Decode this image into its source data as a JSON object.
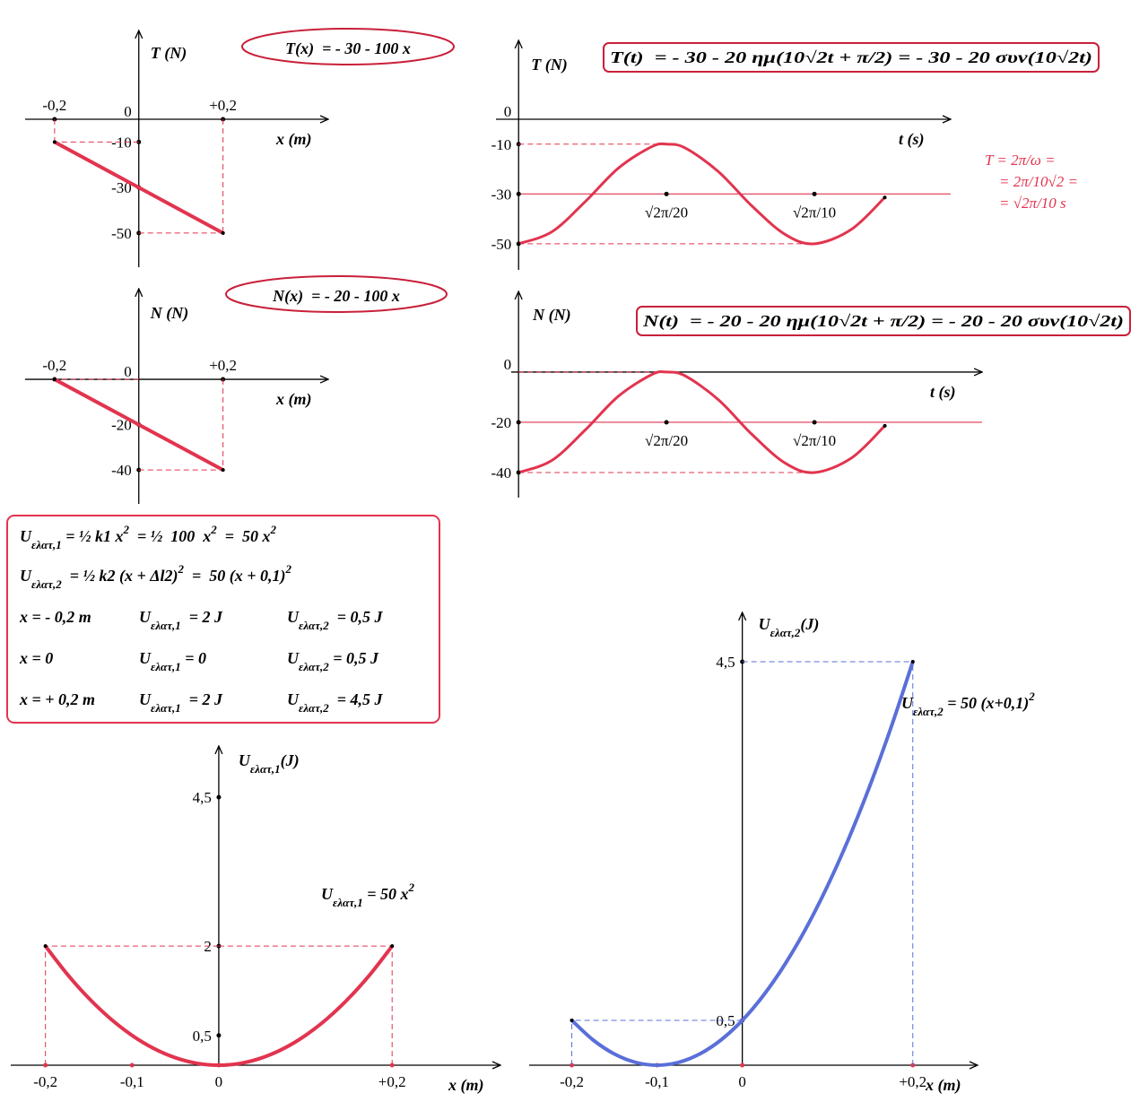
{
  "chart_data": [
    {
      "type": "line",
      "title": "T(x)  = - 30 - 100 x",
      "title_frame": "ellipse",
      "y_label": [
        "T (N)"
      ],
      "x_label": "x (m)",
      "x": [
        -0.2,
        0.2
      ],
      "values": [
        -10,
        -50
      ],
      "color": "#e2344f",
      "xlim": [
        -0.27,
        0.45
      ],
      "ylim": [
        -65,
        39
      ],
      "xticks": [
        {
          "value": -0.2,
          "label": "-0,2"
        },
        {
          "value": 0.2,
          "label": "+0,2"
        }
      ],
      "yticks": [
        0,
        -10,
        -30,
        -50
      ],
      "guides": "ends",
      "xtick_side": "top"
    },
    {
      "type": "line",
      "title": "T(t)  = - 30 - 20 ημ(10√2t + π/2) = - 30 - 20 συν(10√2t)",
      "title_frame": "box",
      "y_label": [
        "T (N)"
      ],
      "x_label": "t (s)",
      "x": [
        0,
        0.05,
        0.1,
        0.15,
        0.2,
        0.2221,
        0.25,
        0.3,
        0.35,
        0.4,
        0.4443,
        0.5,
        0.55
      ],
      "values": [
        -50,
        -45.2,
        -33.1,
        -19.6,
        -11.0,
        -10,
        -11.5,
        -21.0,
        -34.7,
        -46.2,
        -50,
        -44.2,
        -31.4
      ],
      "color": "#e2344f",
      "xlim": [
        -0.034,
        0.649
      ],
      "ylim": [
        -60.5,
        31.7
      ],
      "xticks": [
        {
          "value": 0.2221,
          "label": "√2π/20"
        },
        {
          "value": 0.4443,
          "label": "√2π/10"
        }
      ],
      "yticks": [
        0,
        -10,
        -30,
        -50
      ],
      "midline": -30,
      "guides": "extrema",
      "xtick_side": "bottom",
      "note": [
        "T = 2π/ω =",
        "= 2π/10√2 =",
        "= √2π/10 s"
      ]
    },
    {
      "type": "line",
      "title": "N(x)  = - 20 - 100 x",
      "title_frame": "ellipse",
      "y_label": [
        "N (N)"
      ],
      "x_label": "x (m)",
      "x": [
        -0.2,
        0.2
      ],
      "values": [
        0,
        -40
      ],
      "color": "#e2344f",
      "xlim": [
        -0.27,
        0.45
      ],
      "ylim": [
        -55,
        40
      ],
      "xticks": [
        {
          "value": -0.2,
          "label": "-0,2"
        },
        {
          "value": 0.2,
          "label": "+0,2"
        }
      ],
      "yticks": [
        0,
        -20,
        -40
      ],
      "guides": "ends",
      "xtick_side": "top"
    },
    {
      "type": "line",
      "title": "N(t)  = - 20 - 20 ημ(10√2t + π/2) = - 20 - 20 συν(10√2t)",
      "title_frame": "box",
      "y_label": [
        "N (N)"
      ],
      "x_label": "t (s)",
      "x": [
        0,
        0.05,
        0.1,
        0.15,
        0.2,
        0.2221,
        0.25,
        0.3,
        0.35,
        0.4,
        0.4443,
        0.5,
        0.55
      ],
      "values": [
        -40,
        -35.2,
        -23.1,
        -9.6,
        -1.0,
        0,
        -1.5,
        -11.0,
        -24.7,
        -36.2,
        -40,
        -34.2,
        -21.4
      ],
      "color": "#e2344f",
      "xlim": [
        -0.011,
        0.696
      ],
      "ylim": [
        -50,
        32.1
      ],
      "xticks": [
        {
          "value": 0.2221,
          "label": "√2π/20"
        },
        {
          "value": 0.4443,
          "label": "√2π/10"
        }
      ],
      "yticks": [
        0,
        -20,
        -40
      ],
      "midline": -20,
      "guides": "extrema",
      "xtick_side": "bottom"
    },
    {
      "type": "line",
      "y_label": [
        "U",
        {
          "sub": "ελατ,1"
        },
        "(J)"
      ],
      "x_label": "x (m)",
      "annotation": [
        "U",
        {
          "sub": "ελατ,1"
        },
        " = 50 x",
        {
          "sup": "2"
        }
      ],
      "x": [
        -0.2,
        -0.175,
        -0.15,
        -0.125,
        -0.1,
        -0.075,
        -0.05,
        -0.025,
        0,
        0.025,
        0.05,
        0.075,
        0.1,
        0.125,
        0.15,
        0.175,
        0.2
      ],
      "values": [
        2,
        1.53125,
        1.125,
        0.78125,
        0.5,
        0.28125,
        0.125,
        0.03125,
        0,
        0.03125,
        0.125,
        0.28125,
        0.5,
        0.78125,
        1.125,
        1.53125,
        2
      ],
      "color": "#e2344f",
      "xlim": [
        -0.24,
        0.325
      ],
      "ylim": [
        0,
        5.36
      ],
      "xticks": [
        {
          "value": -0.2,
          "label": "-0,2"
        },
        {
          "value": -0.1,
          "label": "-0,1"
        },
        0,
        {
          "value": 0.2,
          "label": "+0,2"
        }
      ],
      "yticks": [
        {
          "value": 4.5,
          "label": "4,5"
        },
        2,
        {
          "value": 0.5,
          "label": "0,5"
        }
      ],
      "guides": "ends",
      "xtick_side": "bottom"
    },
    {
      "type": "line",
      "y_label": [
        "U",
        {
          "sub": "ελατ,2"
        },
        "(J)"
      ],
      "x_label": "x (m)",
      "annotation": [
        "U",
        {
          "sub": "ελατ,2"
        },
        " = 50 (x+0,1)",
        {
          "sup": "2"
        }
      ],
      "x": [
        -0.2,
        -0.175,
        -0.15,
        -0.125,
        -0.1,
        -0.075,
        -0.05,
        -0.025,
        0,
        0.025,
        0.05,
        0.075,
        0.1,
        0.125,
        0.15,
        0.175,
        0.2
      ],
      "values": [
        0.5,
        0.28125,
        0.125,
        0.03125,
        0,
        0.03125,
        0.125,
        0.28125,
        0.5,
        0.78125,
        1.125,
        1.53125,
        2,
        2.53125,
        3.125,
        3.78125,
        4.5
      ],
      "color": "#5a6fd8",
      "xlim": [
        -0.25,
        0.276
      ],
      "ylim": [
        0,
        5.05
      ],
      "xticks": [
        {
          "value": -0.2,
          "label": "-0,2"
        },
        {
          "value": -0.1,
          "label": "-0,1"
        },
        0,
        {
          "value": 0.2,
          "label": "+0,2"
        }
      ],
      "yticks": [
        {
          "value": 4.5,
          "label": "4,5"
        },
        {
          "value": 0.5,
          "label": "0,5"
        }
      ],
      "guides": "ends",
      "xtick_side": "bottom"
    }
  ],
  "formula_box": {
    "rows": [
      [
        [
          "U",
          {
            "sub": "ελατ,1"
          },
          " = ½ k1 x",
          {
            "sup": "2"
          },
          "  = ½  100  x",
          {
            "sup": "2"
          },
          "  =  50 x",
          {
            "sup": "2"
          }
        ]
      ],
      [
        [
          "U",
          {
            "sub": "ελατ,2"
          },
          "  = ½ k2 (x + Δl2)",
          {
            "sup": "2"
          },
          "  =  50 (x + 0,1)",
          {
            "sup": "2"
          }
        ]
      ],
      [
        [
          "x = - 0,2 m"
        ],
        [
          "U",
          {
            "sub": "ελατ,1"
          },
          "  = 2 J"
        ],
        [
          "U",
          {
            "sub": "ελατ,2"
          },
          "  = 0,5 J"
        ]
      ],
      [
        [
          "x = 0"
        ],
        [
          "U",
          {
            "sub": "ελατ,1"
          },
          " = 0"
        ],
        [
          "U",
          {
            "sub": "ελατ,2"
          },
          " = 0,5 J"
        ]
      ],
      [
        [
          "x = + 0,2 m"
        ],
        [
          "U",
          {
            "sub": "ελατ,1"
          },
          "  = 2 J"
        ],
        [
          "U",
          {
            "sub": "ελατ,2"
          },
          "  = 4,5 J"
        ]
      ]
    ]
  }
}
